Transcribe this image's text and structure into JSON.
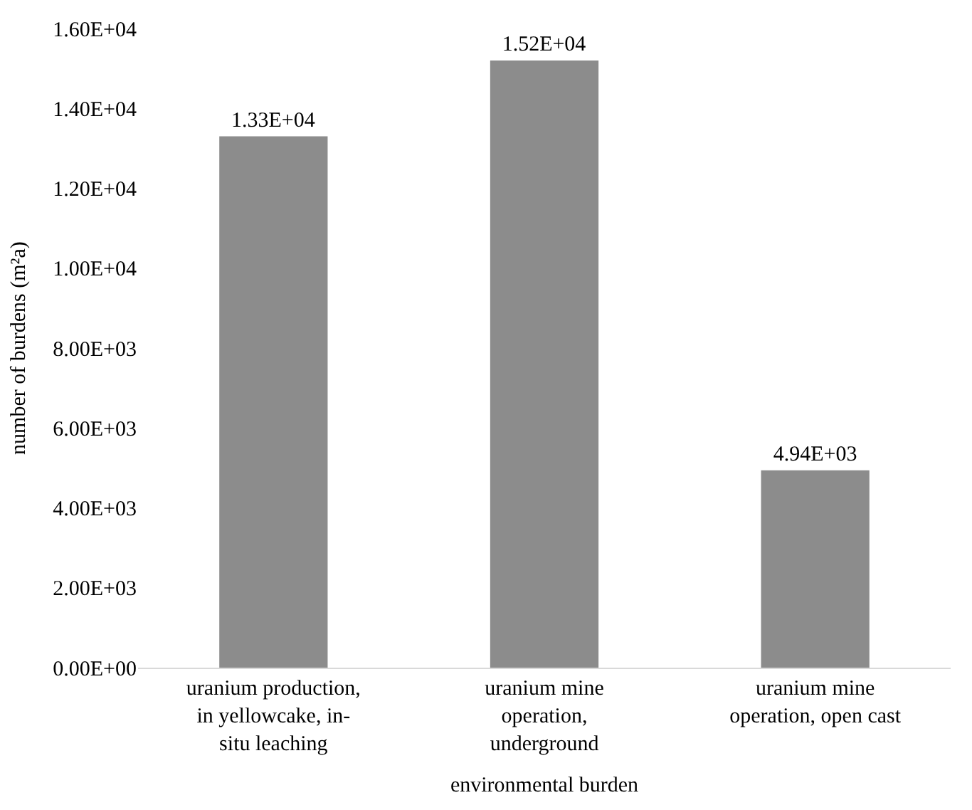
{
  "chart_data": {
    "type": "bar",
    "xlabel": "environmental burden",
    "ylabel": "number of burdens (m²a)",
    "categories": [
      "uranium production, in yellowcake, in-situ leaching",
      "uranium mine operation, underground",
      "uranium mine operation, open cast"
    ],
    "values": [
      13300,
      15200,
      4940
    ],
    "value_labels": [
      "1.33E+04",
      "1.52E+04",
      "4.94E+03"
    ],
    "color": "#8c8c8c",
    "ylim": [
      0,
      16000
    ],
    "yticks": [
      {
        "value": 0,
        "label": "0.00E+00"
      },
      {
        "value": 2000,
        "label": "2.00E+03"
      },
      {
        "value": 4000,
        "label": "4.00E+03"
      },
      {
        "value": 6000,
        "label": "6.00E+03"
      },
      {
        "value": 8000,
        "label": "8.00E+03"
      },
      {
        "value": 10000,
        "label": "1.00E+04"
      },
      {
        "value": 12000,
        "label": "1.20E+04"
      },
      {
        "value": 14000,
        "label": "1.40E+04"
      },
      {
        "value": 16000,
        "label": "1.60E+04"
      }
    ],
    "grid": false,
    "legend": false
  }
}
